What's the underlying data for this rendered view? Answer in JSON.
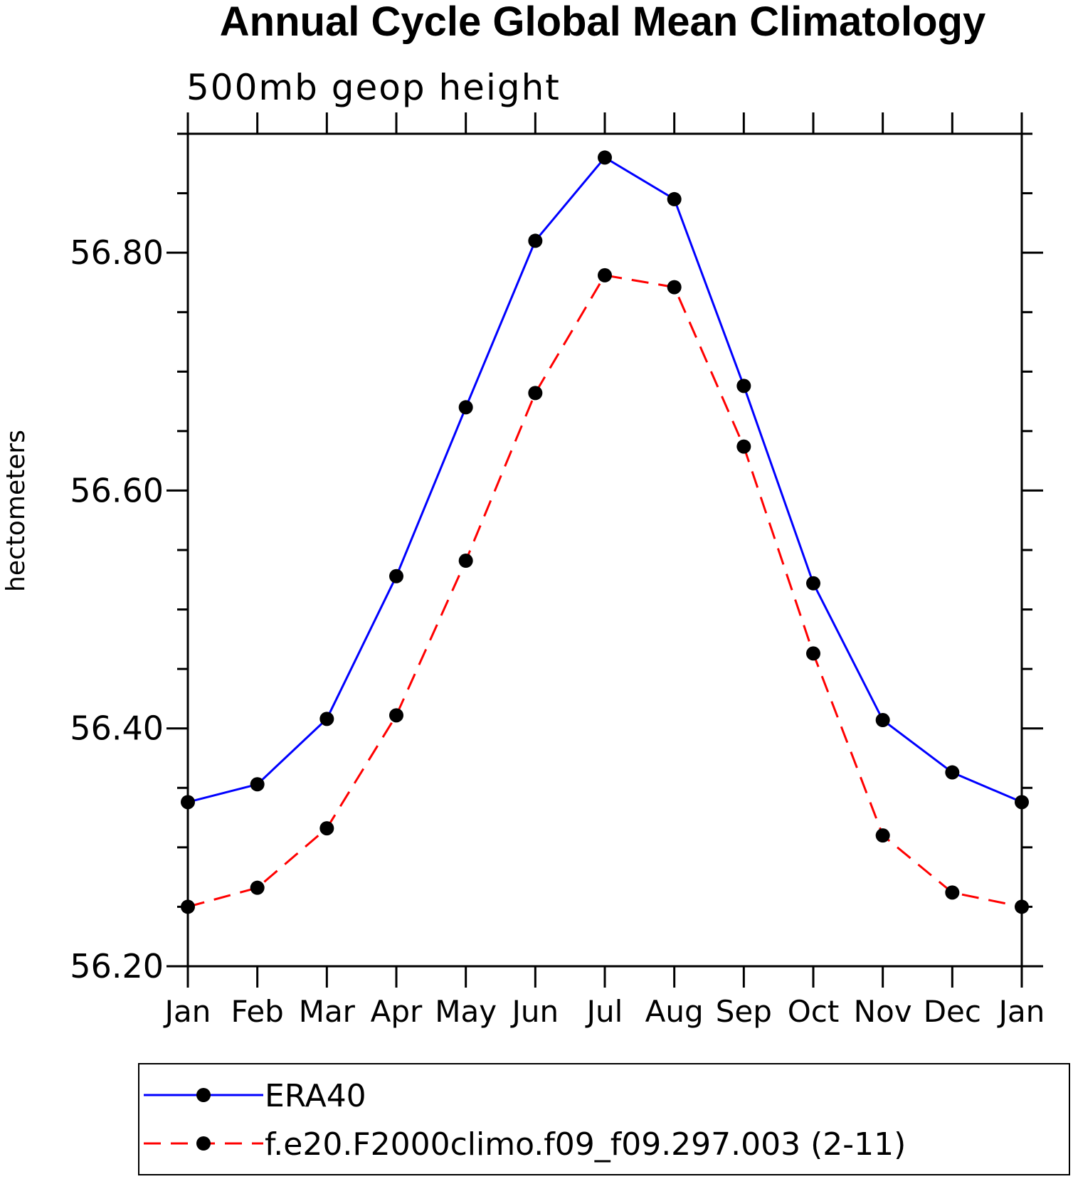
{
  "chart_data": {
    "type": "line",
    "title": "Annual Cycle Global Mean Climatology",
    "subtitle": "500mb geop height",
    "xlabel": "",
    "ylabel": "hectometers",
    "categories": [
      "Jan",
      "Feb",
      "Mar",
      "Apr",
      "May",
      "Jun",
      "Jul",
      "Aug",
      "Sep",
      "Oct",
      "Nov",
      "Dec",
      "Jan"
    ],
    "ylim": [
      56.2,
      56.9
    ],
    "yticks": [
      56.2,
      56.4,
      56.6,
      56.8
    ],
    "ytick_labels": [
      "56.20",
      "56.40",
      "56.60",
      "56.80"
    ],
    "ytick_minor_step": 0.05,
    "grid": false,
    "legend_position": "bottom",
    "series": [
      {
        "name": "ERA40",
        "color": "#0000ff",
        "line_style": "solid",
        "marker": "filled-circle",
        "values": [
          56.338,
          56.353,
          56.408,
          56.528,
          56.67,
          56.81,
          56.88,
          56.845,
          56.688,
          56.522,
          56.407,
          56.363,
          56.338
        ]
      },
      {
        "name": "f.e20.F2000climo.f09_f09.297.003 (2-11)",
        "color": "#ff0000",
        "line_style": "dashed",
        "marker": "filled-circle",
        "values": [
          56.25,
          56.266,
          56.316,
          56.411,
          56.541,
          56.682,
          56.781,
          56.771,
          56.637,
          56.463,
          56.31,
          56.262,
          56.25
        ]
      }
    ]
  }
}
